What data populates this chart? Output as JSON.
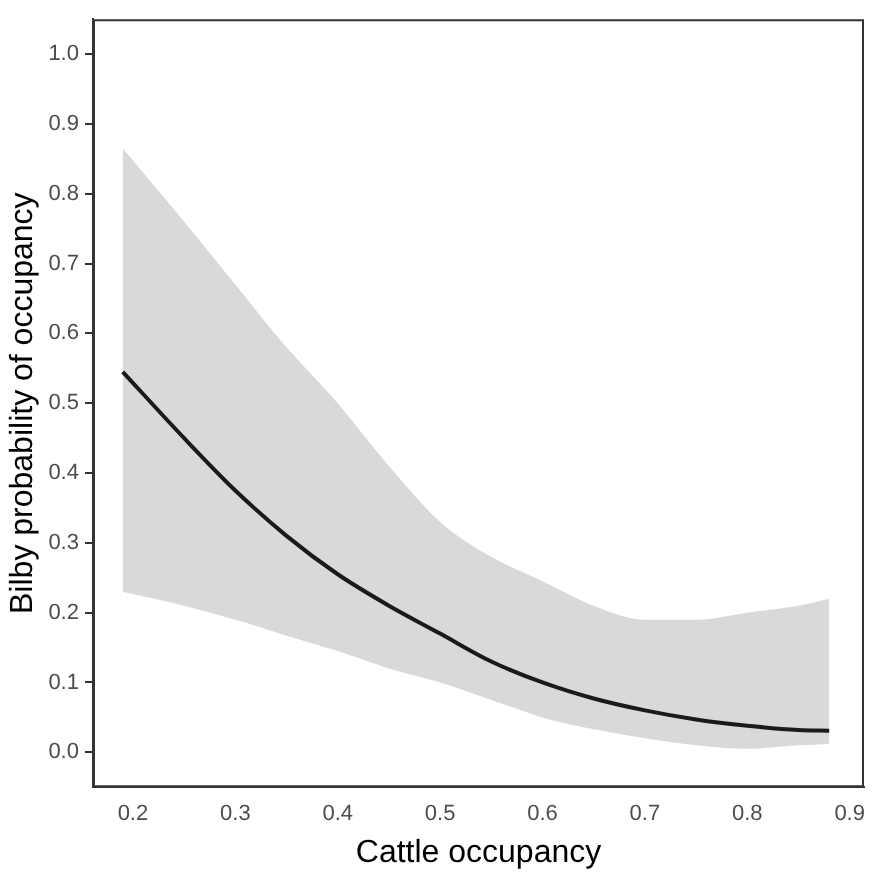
{
  "chart_data": {
    "type": "line",
    "xlabel": "Cattle occupancy",
    "ylabel": "Bilby probability of occupancy",
    "xlim": [
      0.161,
      0.914
    ],
    "ylim": [
      -0.05,
      1.05
    ],
    "xticks": [
      0.2,
      0.3,
      0.4,
      0.5,
      0.6,
      0.7,
      0.8,
      0.9
    ],
    "yticks": [
      {
        "value": 0,
        "label": "0.0"
      },
      0.1,
      0.2,
      0.3,
      0.4,
      0.5,
      0.6,
      0.7,
      0.8,
      0.9,
      {
        "value": 1,
        "label": "1.0"
      }
    ],
    "grid": false,
    "legend": false,
    "marker": "none",
    "line_style": "solid",
    "series": [
      {
        "color": "#1a1a1a",
        "x": [
          0.19,
          0.25,
          0.3,
          0.35,
          0.4,
          0.45,
          0.5,
          0.55,
          0.6,
          0.65,
          0.7,
          0.75,
          0.8,
          0.85,
          0.88
        ],
        "values": [
          0.545,
          0.45,
          0.375,
          0.31,
          0.255,
          0.21,
          0.17,
          0.13,
          0.1,
          0.077,
          0.06,
          0.047,
          0.038,
          0.032,
          0.031
        ],
        "lower": [
          0.23,
          0.21,
          0.19,
          0.167,
          0.145,
          0.12,
          0.1,
          0.075,
          0.05,
          0.033,
          0.02,
          0.01,
          0.005,
          0.01,
          0.012
        ],
        "upper": [
          0.865,
          0.76,
          0.67,
          0.58,
          0.5,
          0.41,
          0.33,
          0.28,
          0.245,
          0.21,
          0.19,
          0.19,
          0.2,
          0.21,
          0.22
        ]
      }
    ]
  }
}
